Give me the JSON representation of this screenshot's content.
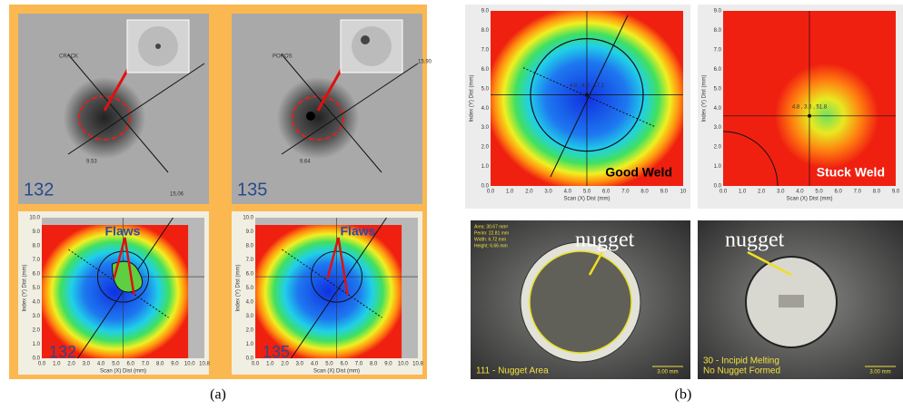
{
  "figure_a": {
    "caption": "(a)",
    "xray": [
      {
        "defect": "CRACK",
        "id": "132",
        "measure_1": "9.53",
        "measure_2": "15.06"
      },
      {
        "defect": "POROS",
        "id": "135",
        "measure_1": "9.64",
        "measure_2": "15.90"
      }
    ],
    "cscan": [
      {
        "annotation": "Flaws",
        "id": "132"
      },
      {
        "annotation": "Flaws",
        "id": "135"
      }
    ],
    "y_axis_title": "Index (Y) Dist (mm)",
    "x_axis_title": "Scan (X) Dist (mm)",
    "y_tick_labels": [
      "0.0",
      "1.0",
      "2.0",
      "3.0",
      "4.0",
      "5.0",
      "6.0",
      "7.0",
      "8.0",
      "9.0",
      "10.0"
    ],
    "x_tick_labels": [
      "0.0",
      "1.0",
      "2.0",
      "3.0",
      "4.0",
      "5.0",
      "6.0",
      "7.0",
      "8.0",
      "9.0",
      "10.0",
      "10.8"
    ]
  },
  "figure_b": {
    "caption": "(b)",
    "y_axis_title": "Index (Y) Dist (mm)",
    "x_axis_title": "Scan (X) Dist (mm)",
    "y_tick_labels": [
      "0.0",
      "1.0",
      "2.0",
      "3.0",
      "4.0",
      "5.0",
      "6.0",
      "7.0",
      "8.0",
      "9.0"
    ],
    "cscan": [
      {
        "label": "Good Weld",
        "readout": "4.8 , 4.9 , 17.1",
        "x_tick_labels": [
          "0.0",
          "1.0",
          "2.0",
          "3.0",
          "4.0",
          "5.0",
          "6.0",
          "7.0",
          "8.0",
          "9.0",
          "10"
        ]
      },
      {
        "label": "Stuck Weld",
        "readout": "4.8 , 3.6 , 51.8",
        "x_tick_labels": [
          "0.0",
          "1.0",
          "2.0",
          "3.0",
          "4.0",
          "5.0",
          "6.0",
          "7.0",
          "8.0",
          "9.0"
        ]
      }
    ],
    "micrograph": [
      {
        "annotation": "nugget",
        "caption_lines": [
          "111 - Nugget Area"
        ],
        "scale_bar": "3.00 mm",
        "measurements": [
          "Area: 30.67 mm²",
          "Perim: 22.81 mm",
          "Width: 6.72 mm",
          "Height: 6.66 mm"
        ]
      },
      {
        "annotation": "nugget",
        "caption_lines": [
          "30 - Incipid Melting",
          "No Nugget Formed"
        ],
        "scale_bar": "3.00 mm"
      }
    ]
  }
}
